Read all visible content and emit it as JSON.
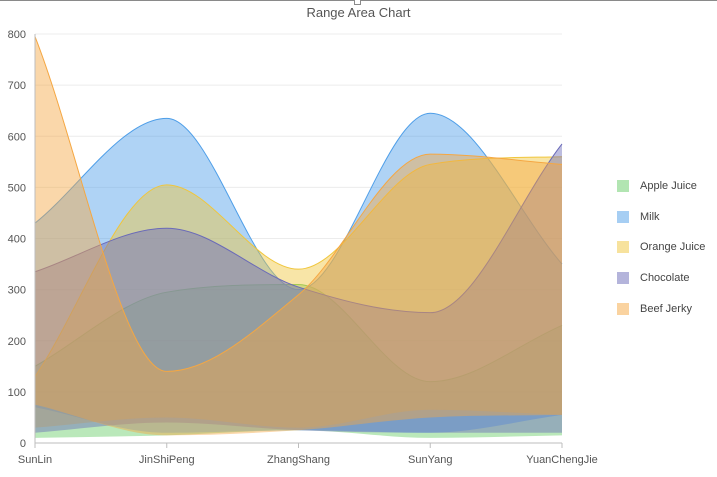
{
  "chart_data": {
    "type": "area",
    "subtype": "range-area",
    "title": "Range Area Chart",
    "categories": [
      "SunLin",
      "JinShiPeng",
      "ZhangShang",
      "SunYang",
      "YuanChengJie"
    ],
    "ylim": [
      0,
      800
    ],
    "yticks": [
      0,
      100,
      200,
      300,
      400,
      500,
      600,
      700,
      800
    ],
    "grid": true,
    "legend_position": "right",
    "series": [
      {
        "name": "Apple Juice",
        "color": "#66cc66",
        "high": [
          150,
          295,
          310,
          120,
          230
        ],
        "low": [
          10,
          15,
          25,
          10,
          15
        ]
      },
      {
        "name": "Milk",
        "color": "#4e9ee8",
        "high": [
          430,
          635,
          300,
          645,
          350
        ],
        "low": [
          70,
          20,
          25,
          20,
          55
        ]
      },
      {
        "name": "Orange Juice",
        "color": "#f0c63c",
        "high": [
          130,
          505,
          340,
          545,
          560
        ],
        "low": [
          30,
          50,
          30,
          65,
          55
        ]
      },
      {
        "name": "Chocolate",
        "color": "#6a6ab8",
        "high": [
          335,
          420,
          305,
          255,
          585
        ],
        "low": [
          20,
          40,
          25,
          20,
          20
        ]
      },
      {
        "name": "Beef Jerky",
        "color": "#f5a742",
        "high": [
          795,
          140,
          290,
          565,
          545
        ],
        "low": [
          75,
          15,
          25,
          50,
          55
        ]
      }
    ]
  }
}
